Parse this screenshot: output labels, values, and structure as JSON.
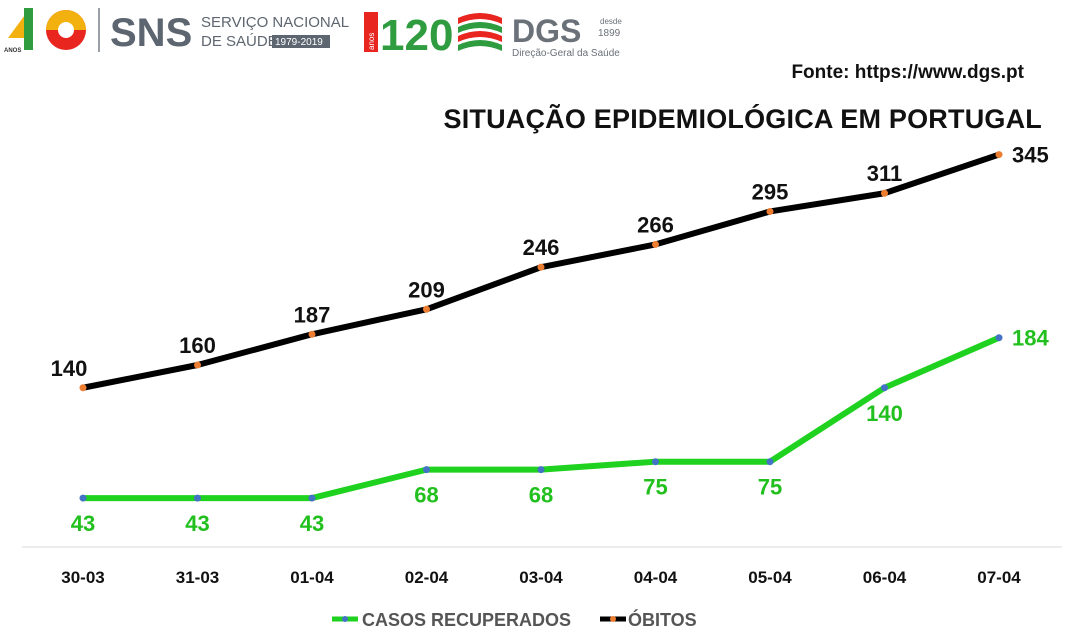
{
  "header": {
    "logos": {
      "sns_years": "40",
      "sns_years_sub": "ANOS",
      "sns_name": "SNS",
      "sns_line1": "SERVIÇO NACIONAL",
      "sns_line2": "DE SAÚDE",
      "sns_range": "1979-2019",
      "dgs_years": "120",
      "dgs_years_sub": "anos",
      "dgs_name": "DGS",
      "dgs_since1": "desde",
      "dgs_since2": "1899",
      "dgs_full": "Direção-Geral da Saúde"
    },
    "source": "Fonte: https://www.dgs.pt",
    "title": "SITUAÇÃO EPIDEMIOLÓGICA EM PORTUGAL"
  },
  "colors": {
    "obitos_line": "#000000",
    "obitos_marker": "#ED7D31",
    "recuperados_line": "#1FD21F",
    "recuperados_marker": "#4472C4",
    "recuperados_label": "#22C01E"
  },
  "chart_data": {
    "type": "line",
    "title": "SITUAÇÃO EPIDEMIOLÓGICA EM PORTUGAL",
    "categories": [
      "30-03",
      "31-03",
      "01-04",
      "02-04",
      "03-04",
      "04-04",
      "05-04",
      "06-04",
      "07-04"
    ],
    "series": [
      {
        "name": "CASOS RECUPERADOS",
        "values": [
          43,
          43,
          43,
          68,
          68,
          75,
          75,
          140,
          184
        ]
      },
      {
        "name": "ÓBITOS",
        "values": [
          140,
          160,
          187,
          209,
          246,
          266,
          295,
          311,
          345
        ]
      }
    ],
    "ylim": [
      0,
      400
    ],
    "grid": false,
    "legend": "bottom-center"
  }
}
